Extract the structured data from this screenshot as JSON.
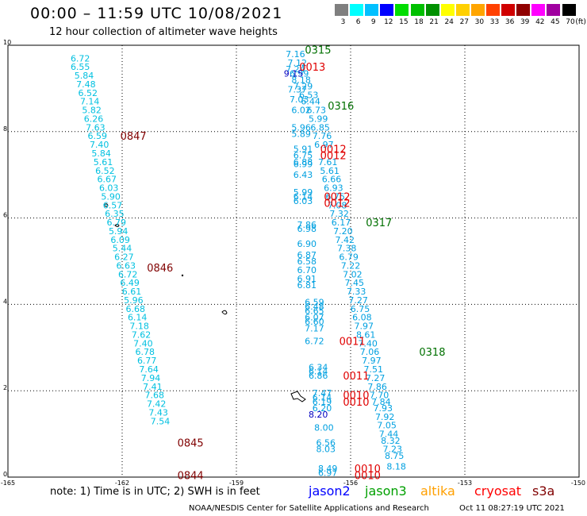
{
  "header": {
    "title": "00:00 – 11:59 UTC 10/08/2021",
    "subtitle": "12 hour collection of altimeter wave heights"
  },
  "colorbar": {
    "labels": [
      "3",
      "6",
      "9",
      "12",
      "15",
      "18",
      "21",
      "24",
      "27",
      "30",
      "33",
      "36",
      "39",
      "42",
      "45",
      "70"
    ],
    "unit": "(ft)",
    "colors": [
      "#7f7f7f",
      "#00ffff",
      "#00c0ff",
      "#0000ff",
      "#00dd00",
      "#00c000",
      "#009000",
      "#ffff00",
      "#ffd000",
      "#ffa500",
      "#ff4000",
      "#d00000",
      "#900000",
      "#ff00ff",
      "#a000a0",
      "#000000"
    ]
  },
  "chart_data": {
    "type": "scatter",
    "xlim": [
      -165,
      -150
    ],
    "ylim": [
      0,
      10
    ],
    "x_ticks": [
      "-165",
      "-162",
      "-159",
      "-156",
      "-153",
      "-150"
    ],
    "y_ticks": [
      "0",
      "2",
      "4",
      "6",
      "8",
      "10"
    ],
    "grid": true,
    "colors": {
      "cyan": "#00c0e0",
      "blue": "#00a0e0",
      "jason3": "#007000",
      "cryosat": "#e00000",
      "s3a": "#800000"
    },
    "tracks": [
      {
        "color": "cyan",
        "points": [
          [
            -163.1,
            9.7,
            "6.72"
          ],
          [
            -163.1,
            9.5,
            "6.55"
          ],
          [
            -163.0,
            9.3,
            "5.84"
          ],
          [
            -162.95,
            9.1,
            "7.48"
          ],
          [
            -162.9,
            8.9,
            "6.52"
          ],
          [
            -162.85,
            8.7,
            "7.14"
          ],
          [
            -162.8,
            8.5,
            "5.82"
          ],
          [
            -162.75,
            8.3,
            "6.26"
          ],
          [
            -162.7,
            8.1,
            "7.63"
          ],
          [
            -162.65,
            7.9,
            "6.59"
          ],
          [
            -162.6,
            7.7,
            "7.40"
          ],
          [
            -162.55,
            7.5,
            "5.84"
          ],
          [
            -162.5,
            7.3,
            "5.61"
          ],
          [
            -162.45,
            7.1,
            "6.52"
          ],
          [
            -162.4,
            6.9,
            "6.67"
          ],
          [
            -162.35,
            6.7,
            "6.03"
          ],
          [
            -162.3,
            6.5,
            "5.90"
          ],
          [
            -162.25,
            6.3,
            "6.57"
          ],
          [
            -162.2,
            6.1,
            "6.35"
          ],
          [
            -162.15,
            5.9,
            "6.79"
          ],
          [
            -162.1,
            5.7,
            "5.94"
          ],
          [
            -162.05,
            5.5,
            "6.09"
          ],
          [
            -162.0,
            5.3,
            "5.44"
          ],
          [
            -161.95,
            5.1,
            "6.27"
          ],
          [
            -161.9,
            4.9,
            "6.63"
          ],
          [
            -161.85,
            4.7,
            "6.72"
          ],
          [
            -161.8,
            4.5,
            "6.49"
          ],
          [
            -161.75,
            4.3,
            "6.61"
          ],
          [
            -161.7,
            4.1,
            "5.96"
          ],
          [
            -161.65,
            3.9,
            "6.68"
          ],
          [
            -161.6,
            3.7,
            "6.14"
          ],
          [
            -161.55,
            3.5,
            "7.18"
          ],
          [
            -161.5,
            3.3,
            "7.62"
          ],
          [
            -161.45,
            3.1,
            "7.40"
          ],
          [
            -161.4,
            2.9,
            "6.78"
          ],
          [
            -161.35,
            2.7,
            "6.77"
          ],
          [
            -161.3,
            2.5,
            "7.64"
          ],
          [
            -161.25,
            2.3,
            "7.94"
          ],
          [
            -161.2,
            2.1,
            "7.41"
          ],
          [
            -161.15,
            1.9,
            "7.68"
          ],
          [
            -161.1,
            1.7,
            "7.42"
          ],
          [
            -161.05,
            1.5,
            "7.43"
          ],
          [
            -161.0,
            1.3,
            "7.54"
          ]
        ]
      },
      {
        "color": "blue",
        "points": [
          [
            -157.45,
            9.8,
            "7.16"
          ],
          [
            -157.4,
            9.6,
            "7.12"
          ],
          [
            -157.45,
            9.45,
            "7.24"
          ],
          [
            -157.35,
            9.35,
            "6.99"
          ],
          [
            -157.3,
            9.2,
            "8.18"
          ],
          [
            -157.25,
            9.05,
            "7.29"
          ],
          [
            -157.4,
            8.98,
            "7.37"
          ],
          [
            -157.1,
            8.85,
            "6.53"
          ],
          [
            -157.35,
            8.75,
            "7.03"
          ],
          [
            -157.05,
            8.7,
            "6.44"
          ],
          [
            -157.3,
            8.5,
            "6.02"
          ],
          [
            -156.9,
            8.5,
            "6.73"
          ],
          [
            -156.85,
            8.3,
            "5.99"
          ],
          [
            -157.3,
            8.1,
            "5.96"
          ],
          [
            -156.8,
            8.1,
            "6.85"
          ],
          [
            -157.3,
            7.95,
            "5.89"
          ],
          [
            -156.75,
            7.9,
            "7.76"
          ],
          [
            -156.7,
            7.7,
            "6.97"
          ],
          [
            -157.25,
            7.6,
            "5.91"
          ],
          [
            -157.25,
            7.45,
            "6.75"
          ],
          [
            -157.25,
            7.3,
            "6.88"
          ],
          [
            -157.25,
            7.25,
            "6.99"
          ],
          [
            -156.6,
            7.3,
            "7.61"
          ],
          [
            -156.55,
            7.1,
            "5.61"
          ],
          [
            -157.25,
            7.0,
            "6.43"
          ],
          [
            -156.5,
            6.9,
            "6.66"
          ],
          [
            -156.45,
            6.7,
            "6.93"
          ],
          [
            -157.25,
            6.6,
            "5.99"
          ],
          [
            -157.25,
            6.5,
            "6.14"
          ],
          [
            -157.25,
            6.4,
            "6.03"
          ],
          [
            -156.4,
            6.5,
            "6.75"
          ],
          [
            -156.35,
            6.3,
            "7.08"
          ],
          [
            -156.3,
            6.1,
            "7.32"
          ],
          [
            -156.25,
            5.9,
            "6.17"
          ],
          [
            -156.2,
            5.7,
            "7.20"
          ],
          [
            -157.15,
            5.85,
            "7.86"
          ],
          [
            -157.15,
            5.75,
            "6.98"
          ],
          [
            -156.15,
            5.5,
            "7.42"
          ],
          [
            -157.15,
            5.4,
            "6.90"
          ],
          [
            -156.1,
            5.3,
            "7.38"
          ],
          [
            -157.15,
            5.15,
            "6.87"
          ],
          [
            -156.05,
            5.1,
            "6.79"
          ],
          [
            -157.15,
            5.0,
            "6.58"
          ],
          [
            -156.0,
            4.9,
            "7.22"
          ],
          [
            -157.15,
            4.8,
            "6.70"
          ],
          [
            -155.95,
            4.7,
            "7.02"
          ],
          [
            -157.15,
            4.6,
            "6.91"
          ],
          [
            -155.9,
            4.5,
            "7.45"
          ],
          [
            -157.15,
            4.45,
            "6.81"
          ],
          [
            -155.85,
            4.3,
            "7.33"
          ],
          [
            -156.95,
            4.05,
            "6.59"
          ],
          [
            -155.8,
            4.1,
            "7.27"
          ],
          [
            -156.95,
            3.95,
            "6.48"
          ],
          [
            -155.75,
            3.9,
            "6.75"
          ],
          [
            -156.95,
            3.85,
            "6.65"
          ],
          [
            -155.7,
            3.7,
            "6.08"
          ],
          [
            -156.95,
            3.7,
            "6.07"
          ],
          [
            -156.95,
            3.6,
            "6.60"
          ],
          [
            -155.65,
            3.5,
            "7.97"
          ],
          [
            -156.95,
            3.45,
            "7.17"
          ],
          [
            -155.6,
            3.3,
            "8.61"
          ],
          [
            -156.95,
            3.15,
            "6.72"
          ],
          [
            -155.55,
            3.1,
            "7.40"
          ],
          [
            -155.5,
            2.9,
            "7.06"
          ],
          [
            -156.85,
            2.55,
            "6.34"
          ],
          [
            -155.45,
            2.7,
            "7.97"
          ],
          [
            -156.85,
            2.45,
            "6.14"
          ],
          [
            -155.4,
            2.5,
            "7.51"
          ],
          [
            -156.85,
            2.35,
            "6.86"
          ],
          [
            -155.35,
            2.3,
            "7.27"
          ],
          [
            -155.3,
            2.1,
            "7.86"
          ],
          [
            -156.75,
            1.95,
            "7.47"
          ],
          [
            -155.25,
            1.9,
            "7.70"
          ],
          [
            -156.75,
            1.85,
            "6.14"
          ],
          [
            -155.2,
            1.75,
            "7.84"
          ],
          [
            -156.75,
            1.75,
            "6.19"
          ],
          [
            -155.15,
            1.6,
            "7.93"
          ],
          [
            -156.75,
            1.6,
            "6.20"
          ],
          [
            -155.1,
            1.4,
            "7.92"
          ],
          [
            -156.7,
            1.15,
            "8.00"
          ],
          [
            -155.05,
            1.2,
            "7.05"
          ],
          [
            -155.0,
            1.0,
            "7.44"
          ],
          [
            -156.65,
            0.8,
            "6.56"
          ],
          [
            -154.95,
            0.85,
            "8.32"
          ],
          [
            -156.65,
            0.65,
            "8.03"
          ],
          [
            -154.9,
            0.65,
            "7.23"
          ],
          [
            -154.85,
            0.5,
            "8.75"
          ],
          [
            -156.6,
            0.2,
            "8.49"
          ],
          [
            -154.8,
            0.25,
            "8.18"
          ],
          [
            -156.6,
            0.1,
            "6.97"
          ]
        ]
      }
    ],
    "dark_blue_labels": [
      [
        -157.5,
        9.35,
        "9.15"
      ],
      [
        -156.85,
        1.45,
        "8.20"
      ]
    ],
    "annotations": [
      {
        "x": -157.2,
        "y": 9.9,
        "text": "0315",
        "color": "jason3"
      },
      {
        "x": -157.35,
        "y": 9.5,
        "text": "0013",
        "color": "cryosat"
      },
      {
        "x": -156.6,
        "y": 8.6,
        "text": "0316",
        "color": "jason3"
      },
      {
        "x": -156.8,
        "y": 7.6,
        "text": "0012",
        "color": "cryosat"
      },
      {
        "x": -156.8,
        "y": 7.45,
        "text": "0012",
        "color": "cryosat"
      },
      {
        "x": -156.7,
        "y": 6.5,
        "text": "0012",
        "color": "cryosat"
      },
      {
        "x": -156.7,
        "y": 6.35,
        "text": "0012",
        "color": "cryosat"
      },
      {
        "x": -155.6,
        "y": 5.9,
        "text": "0317",
        "color": "jason3"
      },
      {
        "x": -156.3,
        "y": 3.15,
        "text": "0011",
        "color": "cryosat"
      },
      {
        "x": -154.2,
        "y": 2.9,
        "text": "0318",
        "color": "jason3"
      },
      {
        "x": -156.2,
        "y": 2.35,
        "text": "0011",
        "color": "cryosat"
      },
      {
        "x": -156.2,
        "y": 1.9,
        "text": "0010",
        "color": "cryosat"
      },
      {
        "x": -156.2,
        "y": 1.75,
        "text": "0010",
        "color": "cryosat"
      },
      {
        "x": -155.9,
        "y": 0.2,
        "text": "0010",
        "color": "cryosat"
      },
      {
        "x": -155.9,
        "y": 0.05,
        "text": "0010",
        "color": "cryosat"
      },
      {
        "x": -162.05,
        "y": 7.9,
        "text": "0847",
        "color": "s3a"
      },
      {
        "x": -161.35,
        "y": 4.85,
        "text": "0846",
        "color": "s3a"
      },
      {
        "x": -160.55,
        "y": 0.8,
        "text": "0845",
        "color": "s3a"
      },
      {
        "x": -160.55,
        "y": 0.05,
        "text": "0844",
        "color": "s3a"
      }
    ]
  },
  "footer": {
    "note": "note:  1) Time is in UTC;  2) SWH is in feet",
    "satellites": [
      {
        "name": "jason2",
        "color": "#0000ff",
        "x": 389
      },
      {
        "name": "jason3",
        "color": "#00a000",
        "x": 460
      },
      {
        "name": "altika",
        "color": "#ffa000",
        "x": 530
      },
      {
        "name": "cryosat",
        "color": "#ff0000",
        "x": 598
      },
      {
        "name": "s3a",
        "color": "#800000",
        "x": 671
      }
    ],
    "credit": "NOAA/NESDIS Center for Satellite Applications and Research",
    "generated": "Oct 11 08:27:19 UTC 2021"
  }
}
